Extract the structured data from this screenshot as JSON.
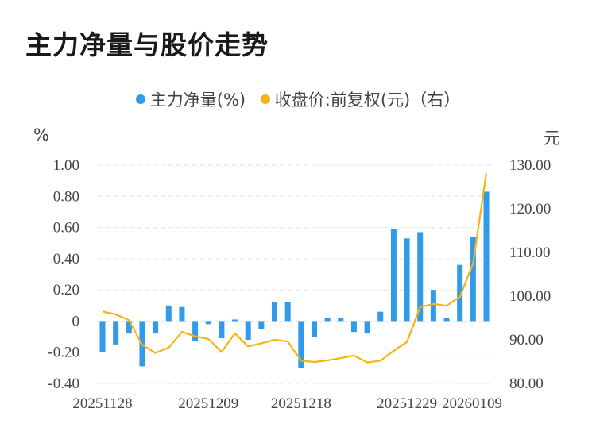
{
  "title": "主力净量与股价走势",
  "legend": [
    {
      "label": "主力净量(%)",
      "color": "#2f9bea"
    },
    {
      "label": "收盘价:前复权(元)（右）",
      "color": "#f5b414"
    }
  ],
  "chart_data": {
    "type": "bar+line",
    "title": "主力净量与股价走势",
    "y_left_unit": "%",
    "y_right_unit": "元",
    "y_left_ticks": [
      "1.00",
      "0.80",
      "0.60",
      "0.40",
      "0.20",
      "0",
      "-0.20",
      "-0.40"
    ],
    "y_right_ticks": [
      "130.00",
      "120.00",
      "110.00",
      "100.00",
      "90.00",
      "80.00"
    ],
    "y_left_range": [
      -0.4,
      1.0
    ],
    "y_right_range": [
      80,
      130
    ],
    "x_tick_labels": [
      "20251128",
      "20251209",
      "20251218",
      "20251229",
      "20260109"
    ],
    "series": [
      {
        "name": "主力净量(%)",
        "type": "bar",
        "values": [
          -0.2,
          -0.15,
          -0.08,
          -0.29,
          -0.08,
          0.1,
          0.09,
          -0.13,
          -0.02,
          -0.11,
          0.01,
          -0.12,
          -0.05,
          0.12,
          0.12,
          -0.3,
          -0.1,
          0.02,
          0.02,
          -0.07,
          -0.08,
          0.06,
          0.59,
          0.53,
          0.57,
          0.2,
          0.02,
          0.36,
          0.54,
          0.83
        ]
      },
      {
        "name": "收盘价:前复权(元)（右）",
        "type": "line",
        "values": [
          96.5,
          95.8,
          94.5,
          88.8,
          87.0,
          88.2,
          91.8,
          90.8,
          90.2,
          87.2,
          91.5,
          88.5,
          89.2,
          90.0,
          89.6,
          85.2,
          84.9,
          85.3,
          85.8,
          86.4,
          84.8,
          85.2,
          87.5,
          89.5,
          97.5,
          98.2,
          97.8,
          99.8,
          107.5,
          128.2
        ]
      }
    ],
    "grid": true
  }
}
